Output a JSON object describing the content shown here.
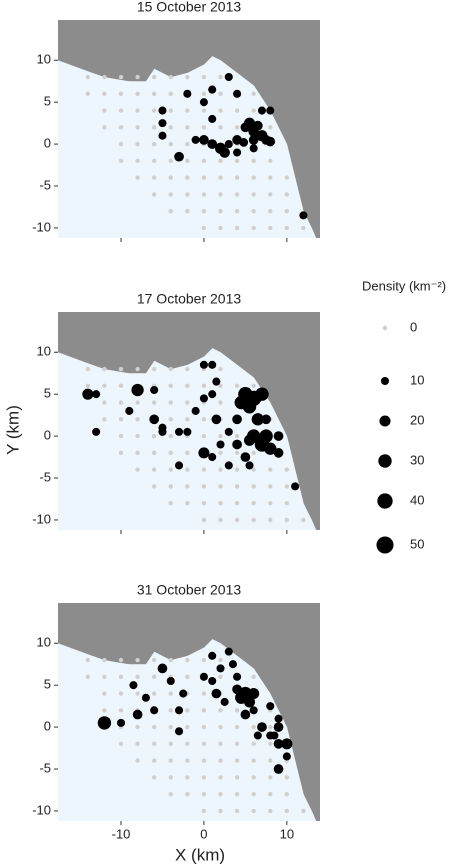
{
  "chart_data": [
    {
      "type": "scatter",
      "title": "15 October 2013",
      "xlim": [
        -17.6,
        14
      ],
      "ylim": [
        -11.2,
        14.8
      ],
      "xticks": [
        -10,
        0,
        10
      ],
      "yticks": [
        -10,
        -5,
        0,
        5,
        10
      ],
      "x": [
        -5,
        -5,
        -5,
        -2,
        0,
        1,
        3,
        1,
        4,
        -1,
        -3,
        0,
        1,
        2,
        2.5,
        3,
        4,
        5,
        5.5,
        6,
        6,
        7,
        7,
        8,
        7.5,
        8,
        6.5,
        4.8,
        4,
        12,
        6
      ],
      "y": [
        4,
        2.5,
        1,
        6,
        5,
        3,
        8,
        6.5,
        6,
        0.5,
        -1.5,
        0.5,
        0,
        -0.5,
        -1,
        0,
        0.5,
        2,
        2.5,
        1.5,
        0.5,
        1,
        4,
        4,
        0.5,
        0.3,
        2.2,
        0.2,
        -1,
        -8.5,
        -0.5
      ],
      "size": [
        10,
        10,
        10,
        10,
        10,
        10,
        10,
        10,
        10,
        10,
        15,
        15,
        15,
        20,
        18,
        10,
        15,
        15,
        20,
        18,
        15,
        20,
        10,
        10,
        15,
        15,
        15,
        12,
        10,
        10,
        10
      ]
    },
    {
      "type": "scatter",
      "title": "17 October 2013",
      "xlim": [
        -17.6,
        14
      ],
      "ylim": [
        -11.2,
        14.8
      ],
      "xticks": [
        -10,
        0,
        10
      ],
      "yticks": [
        -10,
        -5,
        0,
        5,
        10
      ],
      "x": [
        -14,
        -13,
        -13,
        -9,
        -8,
        -6,
        -6,
        -5,
        -5,
        -3,
        -2,
        -1,
        -3,
        0,
        0,
        1,
        1.5,
        1,
        0,
        1,
        1.5,
        2,
        3,
        3,
        4,
        4,
        4.5,
        5,
        5.5,
        6,
        6.5,
        6,
        7,
        7.5,
        8,
        7,
        5,
        5.5,
        7.5,
        9,
        9,
        11,
        5.5
      ],
      "y": [
        5,
        5,
        0.5,
        3,
        5.5,
        5.5,
        2,
        1,
        0.5,
        0.5,
        0.5,
        3,
        -3.5,
        4.5,
        8.5,
        8.5,
        6.5,
        -2.5,
        -2,
        5,
        2,
        -1,
        0.5,
        -3.5,
        -1,
        2,
        4,
        5,
        3.5,
        4.5,
        2,
        0,
        -1,
        0,
        -1.5,
        5,
        -2.5,
        -3.5,
        2,
        -2,
        0,
        -6,
        -0.5
      ],
      "size": [
        20,
        10,
        10,
        10,
        25,
        10,
        15,
        10,
        10,
        10,
        10,
        10,
        10,
        10,
        10,
        10,
        10,
        10,
        20,
        10,
        15,
        10,
        10,
        10,
        15,
        15,
        30,
        35,
        30,
        40,
        25,
        30,
        35,
        30,
        25,
        30,
        15,
        10,
        15,
        15,
        15,
        10,
        20
      ]
    },
    {
      "type": "scatter",
      "title": "31 October 2013",
      "xlim": [
        -17.6,
        14
      ],
      "ylim": [
        -11.2,
        14.8
      ],
      "xticks": [
        -10,
        0,
        10
      ],
      "yticks": [
        -10,
        -5,
        0,
        5,
        10
      ],
      "x": [
        -12,
        -10,
        -8,
        -8.5,
        -7,
        -6,
        -5,
        -4,
        -3,
        -2.5,
        -3,
        1,
        0,
        1,
        2,
        1.5,
        2.5,
        3,
        3.5,
        4,
        4,
        4.5,
        5,
        5.5,
        5,
        6,
        6,
        7,
        6.5,
        8,
        9,
        9,
        8.5,
        9,
        10,
        10,
        9,
        8
      ],
      "y": [
        0.5,
        0.5,
        1.5,
        5,
        3.5,
        2,
        7,
        5.5,
        2,
        4,
        -0.5,
        8.5,
        6,
        5.5,
        7,
        4,
        3,
        9,
        7.5,
        6,
        4.5,
        3.5,
        4,
        3,
        1.5,
        4,
        2,
        0,
        -1,
        2.5,
        1,
        0,
        -1,
        -2,
        -2,
        -3.5,
        -5,
        -1
      ],
      "size": [
        30,
        10,
        15,
        10,
        10,
        10,
        15,
        10,
        10,
        10,
        10,
        10,
        10,
        10,
        10,
        15,
        10,
        10,
        10,
        10,
        15,
        25,
        30,
        20,
        15,
        20,
        10,
        15,
        10,
        10,
        10,
        15,
        10,
        15,
        20,
        10,
        15,
        10
      ]
    }
  ],
  "survey_grid": {
    "density": 0,
    "x": [
      -14,
      -12,
      -10,
      -8,
      -6,
      -4,
      -2,
      0,
      2,
      -14,
      -12,
      -10,
      -8,
      -6,
      -4,
      -2,
      0,
      2,
      4,
      6,
      -12,
      -10,
      -8,
      -6,
      -4,
      -2,
      0,
      2,
      4,
      6,
      -12,
      -10,
      -8,
      -6,
      -4,
      -2,
      0,
      2,
      4,
      6,
      8,
      -10,
      -8,
      -6,
      -4,
      -2,
      0,
      2,
      4,
      6,
      8,
      -10,
      -8,
      -6,
      -4,
      -2,
      0,
      2,
      4,
      6,
      8,
      -8,
      -6,
      -4,
      -2,
      0,
      2,
      4,
      6,
      8,
      10,
      -6,
      -4,
      -2,
      0,
      2,
      4,
      6,
      8,
      10,
      -4,
      -2,
      0,
      2,
      4,
      6,
      8,
      10,
      0,
      2,
      4,
      6,
      8,
      10,
      12
    ],
    "y": [
      8,
      8,
      8,
      8,
      8,
      8,
      8,
      8,
      8,
      6,
      6,
      6,
      6,
      6,
      6,
      6,
      6,
      6,
      6,
      6,
      4,
      4,
      4,
      4,
      4,
      4,
      4,
      4,
      4,
      4,
      2,
      2,
      2,
      2,
      2,
      2,
      2,
      2,
      2,
      2,
      2,
      0,
      0,
      0,
      0,
      0,
      0,
      0,
      0,
      0,
      0,
      -2,
      -2,
      -2,
      -2,
      -2,
      -2,
      -2,
      -2,
      -2,
      -2,
      -4,
      -4,
      -4,
      -4,
      -4,
      -4,
      -4,
      -4,
      -4,
      -4,
      -6,
      -6,
      -6,
      -6,
      -6,
      -6,
      -6,
      -6,
      -6,
      -8,
      -8,
      -8,
      -8,
      -8,
      -8,
      -8,
      -8,
      -10,
      -10,
      -10,
      -10,
      -10,
      -10,
      -10
    ]
  },
  "x_label": "X (km)",
  "y_label": "Y (km)",
  "legend": {
    "title": "Density (km⁻²)",
    "values": [
      0,
      10,
      20,
      30,
      40,
      50
    ]
  }
}
